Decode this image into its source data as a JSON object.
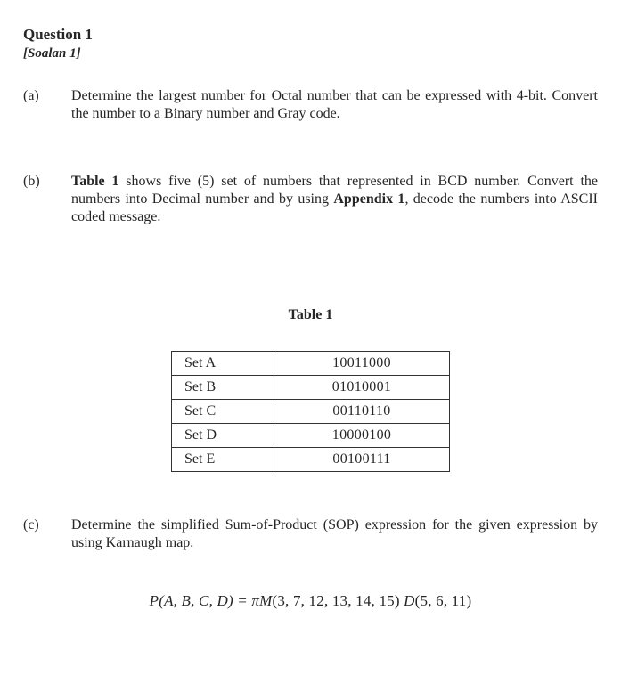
{
  "header": {
    "title": "Question 1",
    "subtitle": "[Soalan 1]"
  },
  "parts": {
    "a": {
      "label": "(a)",
      "text": "Determine the largest number for Octal number that can be expressed with 4-bit. Convert the number to a Binary number and Gray code."
    },
    "b": {
      "label": "(b)",
      "pre": "Table 1",
      "post": " shows five (5) set of numbers that represented in BCD number. Convert the numbers into Decimal number and by using ",
      "appendix": "Appendix 1",
      "tail": ", decode the numbers into ASCII coded message."
    },
    "c": {
      "label": "(c)",
      "text": "Determine the simplified Sum-of-Product (SOP) expression for the given expression by using Karnaugh map."
    }
  },
  "table": {
    "caption": "Table 1",
    "rows": [
      {
        "set": "Set A",
        "value": "10011000"
      },
      {
        "set": "Set B",
        "value": "01010001"
      },
      {
        "set": "Set C",
        "value": "00110110"
      },
      {
        "set": "Set D",
        "value": "10000100"
      },
      {
        "set": "Set E",
        "value": "00100111"
      }
    ]
  },
  "formula": {
    "lhs": "P(A, B, C, D) = ",
    "pi": "π",
    "m": "M",
    "args1": "(3, 7, 12, 13, 14, 15) ",
    "d": "D",
    "args2": "(5, 6, 11)"
  }
}
